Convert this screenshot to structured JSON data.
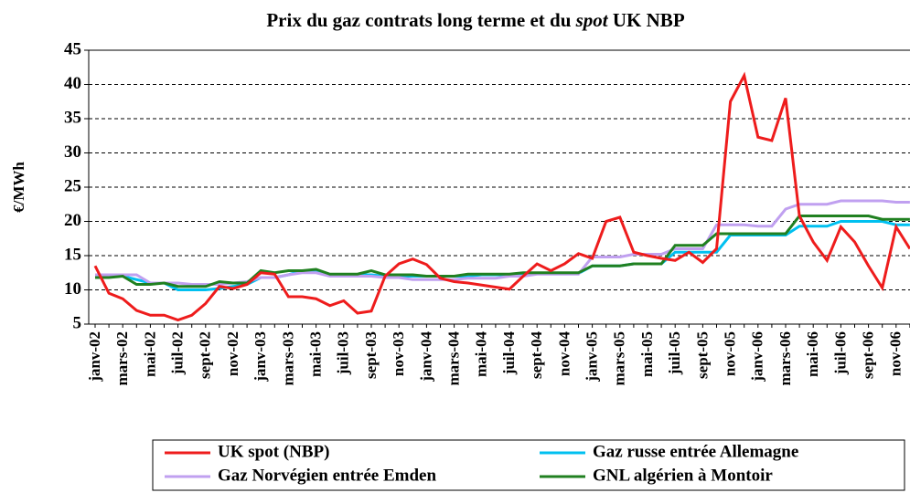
{
  "chart_data": {
    "type": "line",
    "title": [
      "Prix du gaz contrats long terme et du ",
      "spot",
      " UK NBP"
    ],
    "y_label": "€/MWh",
    "categories": [
      "janv-02",
      null,
      "mars-02",
      null,
      "mai-02",
      null,
      "juil-02",
      null,
      "sept-02",
      null,
      "nov-02",
      null,
      "janv-03",
      null,
      "mars-03",
      null,
      "mai-03",
      null,
      "juil-03",
      null,
      "sept-03",
      null,
      "nov-03",
      null,
      "janv-04",
      null,
      "mars-04",
      null,
      "mai-04",
      null,
      "juil-04",
      null,
      "sept-04",
      null,
      "nov-04",
      null,
      "janv-05",
      null,
      "mars-05",
      null,
      "mai-05",
      null,
      "juil-05",
      null,
      "sept-05",
      null,
      "nov-05",
      null,
      "janv-06",
      null,
      "mars-06",
      null,
      "mai-06",
      null,
      "juil-06",
      null,
      "sept-06",
      null,
      "nov-06",
      null
    ],
    "ylim": [
      5,
      45
    ],
    "yticks": [
      5,
      10,
      15,
      20,
      25,
      30,
      35,
      40,
      45
    ],
    "grid": true,
    "series": [
      {
        "name": "UK spot (NBP)",
        "color": "#ee1c1c",
        "values": [
          13.5,
          9.5,
          8.7,
          7,
          6.3,
          6.3,
          5.6,
          6.3,
          8,
          10.5,
          10.2,
          10.8,
          12.5,
          12.3,
          9,
          9,
          8.7,
          7.7,
          8.4,
          6.6,
          6.9,
          12,
          13.8,
          14.5,
          13.7,
          11.7,
          11.2,
          11,
          10.7,
          10.4,
          10.1,
          12,
          13.8,
          12.8,
          13.8,
          15.3,
          14.6,
          20,
          20.6,
          15.5,
          15,
          14.6,
          14.3,
          15.5,
          14,
          16,
          37.5,
          41.3,
          32.3,
          31.8,
          38,
          20.8,
          17,
          14.3,
          19.2,
          17,
          13.5,
          10.3,
          19.2,
          16
        ]
      },
      {
        "name": "Gaz russe entrée Allemagne",
        "color": "#00c0f0",
        "values": [
          12,
          12,
          12,
          11.5,
          11,
          11,
          10,
          10,
          10,
          10.2,
          10.5,
          10.8,
          11.8,
          11.8,
          12.2,
          12.8,
          12.8,
          12.2,
          12.2,
          12.2,
          12.2,
          12,
          12,
          12,
          12,
          12,
          12,
          12,
          12.2,
          12.2,
          12.2,
          12.2,
          12.4,
          12.4,
          12.4,
          12.4,
          13.5,
          13.5,
          13.5,
          13.8,
          13.8,
          13.8,
          15.5,
          15.5,
          15.5,
          15.5,
          18,
          18,
          18,
          18,
          18,
          19.3,
          19.3,
          19.3,
          20,
          20,
          20,
          20,
          19.5,
          19.5
        ]
      },
      {
        "name": "Gaz Norvégien entrée Emden",
        "color": "#c0a0f0",
        "values": [
          12.2,
          12.2,
          12.2,
          12.2,
          11,
          11,
          11,
          10.8,
          10.8,
          10.8,
          11,
          11.2,
          11.8,
          11.8,
          12.2,
          12.5,
          12.5,
          12,
          12,
          12,
          12,
          11.8,
          11.8,
          11.5,
          11.5,
          11.5,
          11.5,
          11.7,
          11.7,
          11.7,
          12,
          12,
          12.3,
          12.3,
          12.3,
          12.3,
          14.8,
          14.8,
          14.8,
          15.2,
          15.2,
          15.2,
          16,
          16,
          16,
          19.5,
          19.5,
          19.5,
          19.3,
          19.3,
          21.8,
          22.5,
          22.5,
          22.5,
          23,
          23,
          23,
          23,
          22.8,
          22.8
        ]
      },
      {
        "name": "GNL algérien à Montoir",
        "color": "#208020",
        "values": [
          11.8,
          11.8,
          12,
          10.8,
          10.8,
          11,
          10.5,
          10.5,
          10.5,
          11.2,
          11,
          11,
          12.8,
          12.5,
          12.8,
          12.8,
          13,
          12.3,
          12.3,
          12.3,
          12.8,
          12.2,
          12.2,
          12.2,
          12,
          12,
          12,
          12.3,
          12.3,
          12.3,
          12.3,
          12.5,
          12.5,
          12.5,
          12.5,
          12.5,
          13.5,
          13.5,
          13.5,
          13.8,
          13.8,
          13.8,
          16.5,
          16.5,
          16.5,
          18.2,
          18.2,
          18.2,
          18.2,
          18.2,
          18.2,
          20.8,
          20.8,
          20.8,
          20.8,
          20.8,
          20.8,
          20.3,
          20.3,
          20.3
        ]
      }
    ]
  }
}
